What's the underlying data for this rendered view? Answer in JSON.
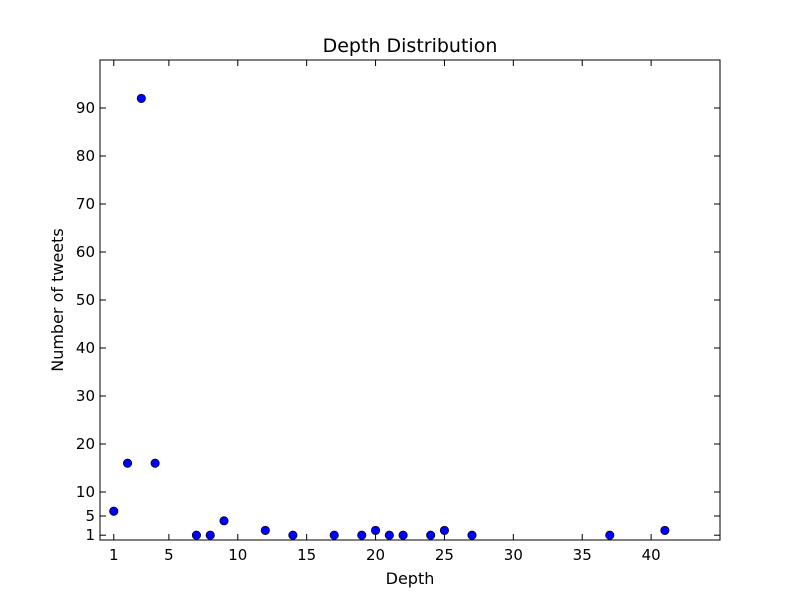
{
  "chart_data": {
    "type": "scatter",
    "title": "Depth Distribution",
    "xlabel": "Depth",
    "ylabel": "Number of tweets",
    "xlim": [
      0,
      45
    ],
    "ylim": [
      0,
      100
    ],
    "x_ticks": [
      1,
      5,
      10,
      15,
      20,
      25,
      30,
      35,
      40
    ],
    "y_ticks": [
      1,
      5,
      10,
      20,
      30,
      40,
      50,
      60,
      70,
      80,
      90
    ],
    "grid": false,
    "marker_color": "#0000ff",
    "points": [
      {
        "x": 1,
        "y": 6
      },
      {
        "x": 2,
        "y": 16
      },
      {
        "x": 3,
        "y": 92
      },
      {
        "x": 4,
        "y": 16
      },
      {
        "x": 7,
        "y": 1
      },
      {
        "x": 8,
        "y": 1
      },
      {
        "x": 9,
        "y": 4
      },
      {
        "x": 12,
        "y": 2
      },
      {
        "x": 14,
        "y": 1
      },
      {
        "x": 17,
        "y": 1
      },
      {
        "x": 19,
        "y": 1
      },
      {
        "x": 20,
        "y": 2
      },
      {
        "x": 21,
        "y": 1
      },
      {
        "x": 22,
        "y": 1
      },
      {
        "x": 24,
        "y": 1
      },
      {
        "x": 25,
        "y": 2
      },
      {
        "x": 27,
        "y": 1
      },
      {
        "x": 37,
        "y": 1
      },
      {
        "x": 41,
        "y": 2
      }
    ]
  }
}
